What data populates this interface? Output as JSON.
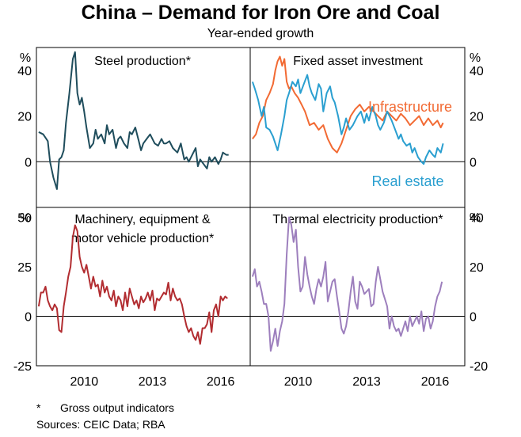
{
  "title": "China – Demand for Iron Ore and Coal",
  "subtitle": "Year-ended growth",
  "footnote": {
    "marker": "*",
    "text": "Gross output indicators"
  },
  "sources": "Sources:   CEIC Data; RBA",
  "colors": {
    "steel": "#1f4d5c",
    "infrastructure": "#f26a33",
    "real_estate": "#2a9fd0",
    "machinery": "#b22d31",
    "thermal": "#9d7fbd",
    "gridline": "#000000"
  },
  "chart_data": [
    {
      "type": "line",
      "title": "Steel production*",
      "ylabel": "%",
      "y_axis_side": "left",
      "ylim": [
        -20,
        50
      ],
      "yticks": [
        0,
        20,
        40
      ],
      "xlim": [
        2007.9,
        2017.3
      ],
      "xticks": [
        "2010",
        "2013",
        "2016"
      ],
      "series": [
        {
          "name": "Steel production",
          "color_key": "steel",
          "x": [
            2008.0,
            2008.2,
            2008.4,
            2008.5,
            2008.65,
            2008.8,
            2008.9,
            2009.0,
            2009.1,
            2009.2,
            2009.35,
            2009.5,
            2009.6,
            2009.7,
            2009.8,
            2009.9,
            2010.0,
            2010.1,
            2010.25,
            2010.4,
            2010.5,
            2010.6,
            2010.75,
            2010.9,
            2011.0,
            2011.1,
            2011.25,
            2011.4,
            2011.5,
            2011.6,
            2011.75,
            2011.9,
            2012.0,
            2012.1,
            2012.25,
            2012.4,
            2012.5,
            2012.6,
            2012.75,
            2012.9,
            2013.0,
            2013.1,
            2013.25,
            2013.4,
            2013.5,
            2013.6,
            2013.75,
            2013.9,
            2014.0,
            2014.1,
            2014.25,
            2014.4,
            2014.5,
            2014.6,
            2014.75,
            2014.9,
            2015.0,
            2015.1,
            2015.25,
            2015.4,
            2015.5,
            2015.6,
            2015.75,
            2015.9,
            2016.0,
            2016.1,
            2016.25,
            2016.35
          ],
          "y": [
            13,
            12,
            9,
            0,
            -7,
            -12,
            1,
            2,
            5,
            17,
            30,
            45,
            48,
            30,
            25,
            28,
            22,
            15,
            6,
            8,
            14,
            10,
            12,
            8,
            16,
            12,
            14,
            6,
            10,
            11,
            8,
            6,
            13,
            12,
            15,
            9,
            5,
            8,
            10,
            12,
            10,
            8,
            7,
            10,
            8,
            8,
            9,
            6,
            5,
            4,
            8,
            1,
            2,
            0,
            3,
            6,
            -2,
            1,
            -1,
            -3,
            2,
            0,
            2,
            -1,
            1,
            4,
            3,
            3
          ]
        }
      ]
    },
    {
      "type": "line",
      "title": "Fixed asset investment",
      "ylabel": "%",
      "y_axis_side": "right",
      "ylim": [
        -20,
        50
      ],
      "yticks": [
        0,
        20,
        40
      ],
      "xlim": [
        2007.9,
        2017.3
      ],
      "xticks": [
        "2010",
        "2013",
        "2016"
      ],
      "series": [
        {
          "name": "Infrastructure",
          "color_key": "infrastructure",
          "x": [
            2008.0,
            2008.15,
            2008.3,
            2008.45,
            2008.6,
            2008.75,
            2008.9,
            2009.0,
            2009.1,
            2009.2,
            2009.3,
            2009.4,
            2009.5,
            2009.6,
            2009.7,
            2009.85,
            2010.0,
            2010.15,
            2010.3,
            2010.5,
            2010.7,
            2010.9,
            2011.1,
            2011.3,
            2011.5,
            2011.7,
            2011.9,
            2012.1,
            2012.3,
            2012.5,
            2012.7,
            2012.9,
            2013.1,
            2013.3,
            2013.5,
            2013.7,
            2013.9,
            2014.1,
            2014.3,
            2014.5,
            2014.7,
            2014.9,
            2015.1,
            2015.3,
            2015.5,
            2015.7,
            2015.9,
            2016.1,
            2016.25,
            2016.35
          ],
          "y": [
            10,
            12,
            17,
            20,
            27,
            30,
            34,
            40,
            44,
            46,
            42,
            45,
            35,
            32,
            33,
            30,
            28,
            25,
            22,
            16,
            17,
            14,
            16,
            10,
            6,
            4,
            8,
            14,
            20,
            23,
            25,
            22,
            24,
            22,
            20,
            18,
            22,
            20,
            18,
            21,
            19,
            16,
            18,
            20,
            16,
            19,
            16,
            18,
            15,
            17
          ]
        },
        {
          "name": "Real estate",
          "color_key": "real_estate",
          "x": [
            2008.0,
            2008.1,
            2008.25,
            2008.4,
            2008.5,
            2008.6,
            2008.75,
            2008.9,
            2009.0,
            2009.1,
            2009.25,
            2009.4,
            2009.5,
            2009.6,
            2009.75,
            2009.9,
            2010.0,
            2010.1,
            2010.25,
            2010.4,
            2010.5,
            2010.6,
            2010.75,
            2010.9,
            2011.0,
            2011.1,
            2011.25,
            2011.4,
            2011.5,
            2011.6,
            2011.75,
            2011.9,
            2012.0,
            2012.1,
            2012.25,
            2012.4,
            2012.5,
            2012.6,
            2012.75,
            2012.9,
            2013.0,
            2013.1,
            2013.25,
            2013.4,
            2013.5,
            2013.6,
            2013.75,
            2013.9,
            2014.0,
            2014.1,
            2014.25,
            2014.4,
            2014.5,
            2014.6,
            2014.75,
            2014.9,
            2015.0,
            2015.1,
            2015.25,
            2015.4,
            2015.5,
            2015.6,
            2015.75,
            2015.9,
            2016.0,
            2016.1,
            2016.25,
            2016.35
          ],
          "y": [
            35,
            32,
            27,
            20,
            24,
            15,
            14,
            11,
            8,
            5,
            12,
            20,
            27,
            30,
            35,
            33,
            36,
            30,
            34,
            38,
            33,
            30,
            27,
            34,
            32,
            22,
            30,
            33,
            28,
            26,
            20,
            12,
            15,
            19,
            14,
            16,
            18,
            20,
            22,
            17,
            21,
            18,
            24,
            20,
            16,
            14,
            17,
            22,
            20,
            18,
            14,
            10,
            12,
            9,
            7,
            8,
            4,
            6,
            2,
            0,
            -1,
            2,
            5,
            3,
            2,
            6,
            4,
            8
          ]
        }
      ]
    },
    {
      "type": "line",
      "title": "Machinery, equipment & motor vehicle production*",
      "ylabel": "%",
      "y_axis_side": "left",
      "ylim": [
        -25,
        55
      ],
      "yticks": [
        -25,
        0,
        25,
        50
      ],
      "xlim": [
        2007.9,
        2017.3
      ],
      "xticks": [
        "2010",
        "2013",
        "2016"
      ],
      "series": [
        {
          "name": "Machinery, equipment & motor vehicle production",
          "color_key": "machinery",
          "x": [
            2008.0,
            2008.1,
            2008.2,
            2008.3,
            2008.4,
            2008.5,
            2008.6,
            2008.7,
            2008.8,
            2008.9,
            2009.0,
            2009.1,
            2009.2,
            2009.3,
            2009.4,
            2009.5,
            2009.6,
            2009.7,
            2009.8,
            2009.9,
            2010.0,
            2010.1,
            2010.2,
            2010.3,
            2010.4,
            2010.5,
            2010.6,
            2010.7,
            2010.8,
            2010.9,
            2011.0,
            2011.1,
            2011.2,
            2011.3,
            2011.4,
            2011.5,
            2011.6,
            2011.7,
            2011.8,
            2011.9,
            2012.0,
            2012.1,
            2012.2,
            2012.3,
            2012.4,
            2012.5,
            2012.6,
            2012.7,
            2012.8,
            2012.9,
            2013.0,
            2013.1,
            2013.2,
            2013.3,
            2013.4,
            2013.5,
            2013.6,
            2013.7,
            2013.8,
            2013.9,
            2014.0,
            2014.1,
            2014.2,
            2014.3,
            2014.4,
            2014.5,
            2014.6,
            2014.7,
            2014.8,
            2014.9,
            2015.0,
            2015.1,
            2015.2,
            2015.3,
            2015.4,
            2015.5,
            2015.6,
            2015.7,
            2015.8,
            2015.9,
            2016.0,
            2016.1,
            2016.2,
            2016.3
          ],
          "y": [
            5,
            12,
            12,
            15,
            8,
            5,
            3,
            6,
            4,
            -7,
            -8,
            5,
            12,
            20,
            25,
            40,
            46,
            43,
            30,
            25,
            22,
            26,
            20,
            14,
            20,
            15,
            16,
            10,
            18,
            12,
            15,
            10,
            8,
            13,
            5,
            10,
            8,
            3,
            12,
            5,
            14,
            10,
            6,
            8,
            4,
            10,
            7,
            9,
            12,
            8,
            13,
            3,
            9,
            8,
            10,
            12,
            11,
            17,
            8,
            14,
            10,
            8,
            9,
            6,
            0,
            -5,
            -8,
            -6,
            -10,
            -12,
            -8,
            -14,
            -6,
            -6,
            -4,
            2,
            -8,
            3,
            6,
            0,
            10,
            8,
            10,
            9
          ]
        }
      ]
    },
    {
      "type": "line",
      "title": "Thermal electricity production*",
      "ylabel": "%",
      "y_axis_side": "right",
      "ylim": [
        -20,
        44
      ],
      "yticks": [
        -20,
        0,
        20,
        40
      ],
      "xlim": [
        2007.9,
        2017.3
      ],
      "xticks": [
        "2010",
        "2013",
        "2016"
      ],
      "series": [
        {
          "name": "Thermal electricity production",
          "color_key": "thermal",
          "x": [
            2008.0,
            2008.1,
            2008.2,
            2008.3,
            2008.4,
            2008.5,
            2008.6,
            2008.7,
            2008.8,
            2008.9,
            2009.0,
            2009.1,
            2009.2,
            2009.3,
            2009.4,
            2009.5,
            2009.6,
            2009.7,
            2009.8,
            2009.9,
            2010.0,
            2010.1,
            2010.2,
            2010.3,
            2010.4,
            2010.5,
            2010.6,
            2010.7,
            2010.8,
            2010.9,
            2011.0,
            2011.1,
            2011.2,
            2011.3,
            2011.4,
            2011.5,
            2011.6,
            2011.7,
            2011.8,
            2011.9,
            2012.0,
            2012.1,
            2012.2,
            2012.3,
            2012.4,
            2012.5,
            2012.6,
            2012.7,
            2012.8,
            2012.9,
            2013.0,
            2013.1,
            2013.2,
            2013.3,
            2013.4,
            2013.5,
            2013.6,
            2013.7,
            2013.8,
            2013.9,
            2014.0,
            2014.1,
            2014.2,
            2014.3,
            2014.4,
            2014.5,
            2014.6,
            2014.7,
            2014.8,
            2014.9,
            2015.0,
            2015.1,
            2015.2,
            2015.3,
            2015.4,
            2015.5,
            2015.6,
            2015.7,
            2015.8,
            2015.9,
            2016.0,
            2016.1,
            2016.2,
            2016.3
          ],
          "y": [
            16,
            19,
            12,
            14,
            10,
            5,
            5,
            0,
            -14,
            -10,
            -5,
            -12,
            -6,
            -2,
            5,
            25,
            40,
            37,
            30,
            35,
            20,
            10,
            12,
            24,
            17,
            12,
            8,
            5,
            11,
            15,
            12,
            16,
            22,
            6,
            10,
            14,
            15,
            8,
            2,
            -5,
            -7,
            -4,
            2,
            10,
            16,
            6,
            3,
            14,
            12,
            9,
            10,
            11,
            4,
            5,
            14,
            20,
            15,
            10,
            7,
            4,
            -5,
            0,
            -4,
            -6,
            -5,
            -8,
            -5,
            -2,
            -6,
            0,
            -4,
            -2,
            0,
            -3,
            2,
            -6,
            -1,
            0,
            -5,
            -2,
            4,
            8,
            10,
            14
          ]
        }
      ]
    }
  ],
  "annotations": [
    {
      "panel": 1,
      "series": "Infrastructure",
      "text": "Infrastructure"
    },
    {
      "panel": 1,
      "series": "Real estate",
      "text": "Real estate"
    }
  ]
}
